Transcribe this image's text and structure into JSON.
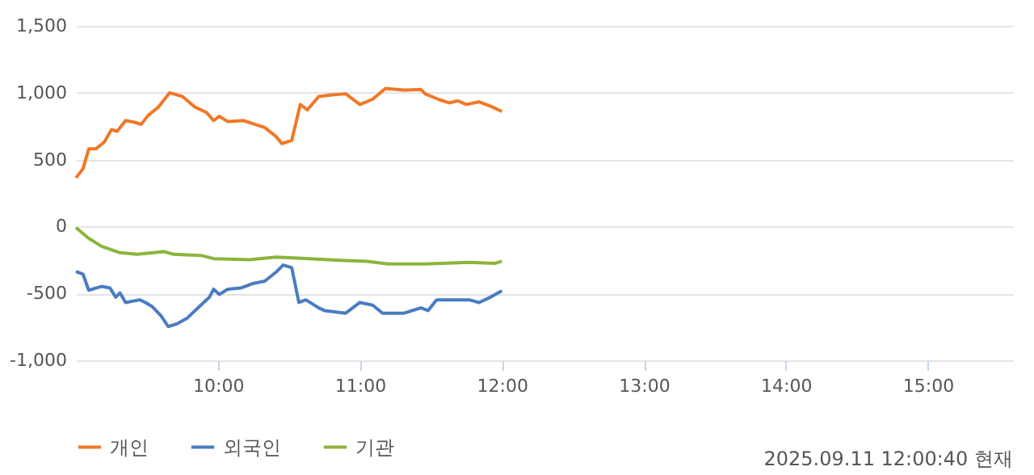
{
  "chart_data": {
    "type": "line",
    "xlim": [
      9,
      15.6
    ],
    "ylim": [
      -1000,
      1500
    ],
    "xticks": [
      {
        "value": 10,
        "label": "10:00"
      },
      {
        "value": 11,
        "label": "11:00"
      },
      {
        "value": 12,
        "label": "12:00"
      },
      {
        "value": 13,
        "label": "13:00"
      },
      {
        "value": 14,
        "label": "14:00"
      },
      {
        "value": 15,
        "label": "15:00"
      }
    ],
    "yticks": [
      {
        "value": -1000,
        "label": "-1,000"
      },
      -500,
      0,
      500,
      {
        "value": 1000,
        "label": "1,000"
      },
      {
        "value": 1500,
        "label": "1,500"
      }
    ],
    "grid": "y",
    "legend": "bottom",
    "annotations": [
      "2025.09.11 12:00:40 현재"
    ],
    "series": [
      {
        "name": "개인",
        "color": "#f07828",
        "x": [
          9.0,
          9.05,
          9.09,
          9.14,
          9.2,
          9.25,
          9.29,
          9.35,
          9.41,
          9.46,
          9.51,
          9.58,
          9.66,
          9.75,
          9.84,
          9.92,
          9.97,
          10.01,
          10.07,
          10.18,
          10.26,
          10.33,
          10.41,
          10.45,
          10.52,
          10.58,
          10.63,
          10.71,
          10.8,
          10.9,
          11.0,
          11.09,
          11.18,
          11.31,
          11.43,
          11.46,
          11.55,
          11.63,
          11.69,
          11.75,
          11.84,
          11.92,
          12.0
        ],
        "values": [
          364,
          432,
          580,
          580,
          632,
          724,
          712,
          792,
          780,
          764,
          832,
          892,
          1000,
          972,
          892,
          852,
          792,
          824,
          784,
          792,
          764,
          740,
          672,
          620,
          644,
          912,
          872,
          972,
          984,
          992,
          912,
          952,
          1032,
          1020,
          1024,
          992,
          952,
          924,
          940,
          912,
          932,
          900,
          860
        ]
      },
      {
        "name": "외국인",
        "color": "#4a7cc0",
        "x": [
          9.0,
          9.05,
          9.09,
          9.18,
          9.24,
          9.28,
          9.31,
          9.35,
          9.45,
          9.49,
          9.54,
          9.6,
          9.65,
          9.71,
          9.78,
          9.88,
          9.94,
          9.97,
          10.01,
          10.07,
          10.16,
          10.24,
          10.33,
          10.41,
          10.46,
          10.52,
          10.57,
          10.62,
          10.71,
          10.75,
          10.9,
          11.0,
          11.09,
          11.16,
          11.31,
          11.43,
          11.48,
          11.54,
          11.69,
          11.77,
          11.84,
          11.92,
          12.0
        ],
        "values": [
          -336,
          -356,
          -476,
          -448,
          -460,
          -528,
          -496,
          -568,
          -548,
          -568,
          -600,
          -668,
          -748,
          -728,
          -688,
          -588,
          -528,
          -468,
          -508,
          -468,
          -460,
          -428,
          -408,
          -340,
          -288,
          -308,
          -568,
          -548,
          -608,
          -628,
          -648,
          -568,
          -588,
          -648,
          -648,
          -608,
          -628,
          -548,
          -548,
          -548,
          -568,
          -528,
          -480
        ]
      },
      {
        "name": "기관",
        "color": "#8cb43c",
        "x": [
          9.0,
          9.09,
          9.18,
          9.31,
          9.43,
          9.62,
          9.69,
          9.88,
          9.97,
          10.22,
          10.41,
          10.56,
          10.86,
          11.05,
          11.2,
          11.46,
          11.77,
          11.95,
          12.0
        ],
        "values": [
          -8,
          -88,
          -148,
          -196,
          -208,
          -188,
          -208,
          -216,
          -240,
          -248,
          -228,
          -236,
          -252,
          -260,
          -280,
          -280,
          -268,
          -276,
          -260
        ]
      }
    ]
  }
}
